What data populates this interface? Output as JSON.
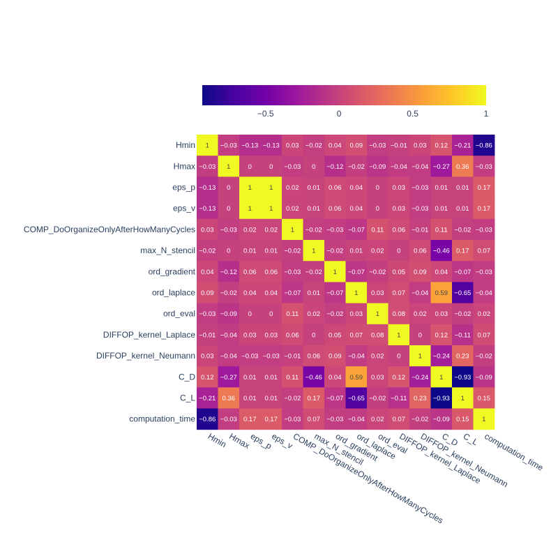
{
  "chart_data": {
    "type": "heatmap",
    "title": "",
    "xlabel": "",
    "ylabel": "",
    "labels": [
      "Hmin",
      "Hmax",
      "eps_p",
      "eps_v",
      "COMP_DoOrganizeOnlyAfterHowManyCycles",
      "max_N_stencil",
      "ord_gradient",
      "ord_laplace",
      "ord_eval",
      "DIFFOP_kernel_Laplace",
      "DIFFOP_kernel_Neumann",
      "C_D",
      "C_L",
      "computation_time"
    ],
    "matrix": [
      [
        1,
        -0.03,
        -0.13,
        -0.13,
        0.03,
        -0.02,
        0.04,
        0.09,
        -0.03,
        -0.01,
        0.03,
        0.12,
        -0.21,
        -0.86
      ],
      [
        -0.03,
        1,
        0,
        0,
        -0.03,
        0,
        -0.12,
        -0.02,
        -0.09,
        -0.04,
        -0.04,
        -0.27,
        0.36,
        -0.03
      ],
      [
        -0.13,
        0,
        1,
        1,
        0.02,
        0.01,
        0.06,
        0.04,
        0,
        0.03,
        -0.03,
        0.01,
        0.01,
        0.17
      ],
      [
        -0.13,
        0,
        1,
        1,
        0.02,
        0.01,
        0.06,
        0.04,
        0,
        0.03,
        -0.03,
        0.01,
        0.01,
        0.17
      ],
      [
        0.03,
        -0.03,
        0.02,
        0.02,
        1,
        -0.02,
        -0.03,
        -0.07,
        0.11,
        0.06,
        -0.01,
        0.11,
        -0.02,
        -0.03
      ],
      [
        -0.02,
        0,
        0.01,
        0.01,
        -0.02,
        1,
        -0.02,
        0.01,
        0.02,
        0,
        0.06,
        -0.46,
        0.17,
        0.07
      ],
      [
        0.04,
        -0.12,
        0.06,
        0.06,
        -0.03,
        -0.02,
        1,
        -0.07,
        -0.02,
        0.05,
        0.09,
        0.04,
        -0.07,
        -0.03
      ],
      [
        0.09,
        -0.02,
        0.04,
        0.04,
        -0.07,
        0.01,
        -0.07,
        1,
        0.03,
        0.07,
        -0.04,
        0.59,
        -0.65,
        -0.04
      ],
      [
        -0.03,
        -0.09,
        0,
        0,
        0.11,
        0.02,
        -0.02,
        0.03,
        1,
        0.08,
        0.02,
        0.03,
        -0.02,
        0.02
      ],
      [
        -0.01,
        -0.04,
        0.03,
        0.03,
        0.06,
        0,
        0.05,
        0.07,
        0.08,
        1,
        0,
        0.12,
        -0.11,
        0.07
      ],
      [
        0.03,
        -0.04,
        -0.03,
        -0.03,
        -0.01,
        0.06,
        0.09,
        -0.04,
        0.02,
        0,
        1,
        -0.24,
        0.23,
        -0.02
      ],
      [
        0.12,
        -0.27,
        0.01,
        0.01,
        0.11,
        -0.46,
        0.04,
        0.59,
        0.03,
        0.12,
        -0.24,
        1,
        -0.93,
        -0.09
      ],
      [
        -0.21,
        0.36,
        0.01,
        0.01,
        -0.02,
        0.17,
        -0.07,
        -0.65,
        -0.02,
        -0.11,
        0.23,
        -0.93,
        1,
        0.15
      ],
      [
        -0.86,
        -0.03,
        0.17,
        0.17,
        -0.03,
        0.07,
        -0.03,
        -0.04,
        0.02,
        0.07,
        -0.02,
        -0.09,
        0.15,
        1
      ]
    ],
    "zmin": -0.93,
    "zmax": 1,
    "colorscale": "plasma",
    "colorbar": {
      "orientation": "horizontal",
      "placement": "top",
      "tick_values": [
        -0.5,
        0,
        0.5,
        1
      ],
      "tick_labels": [
        "−0.5",
        "0",
        "0.5",
        "1"
      ]
    }
  }
}
